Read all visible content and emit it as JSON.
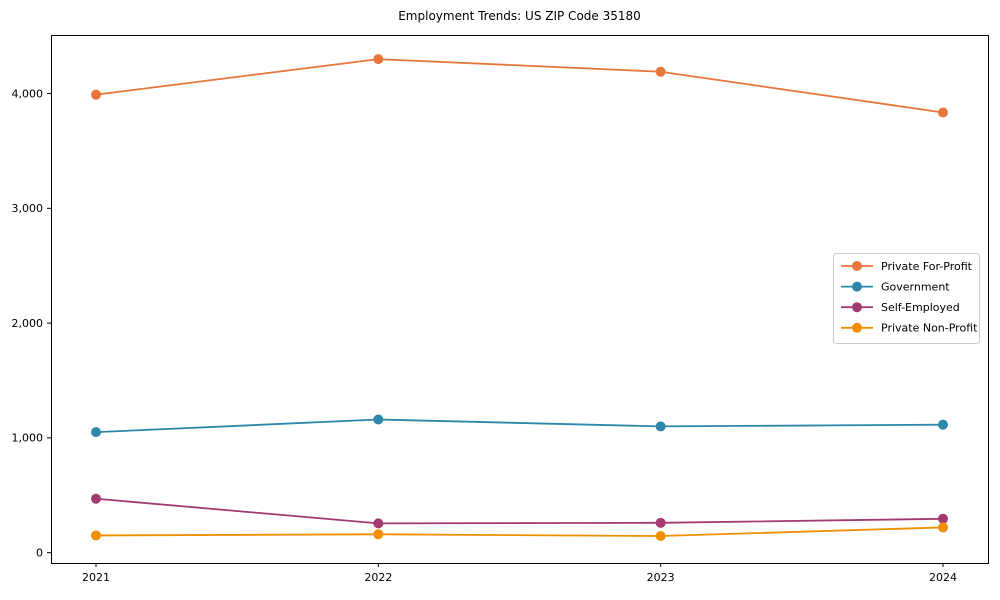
{
  "chart_data": {
    "type": "line",
    "title": "Employment Trends: US ZIP Code 35180",
    "xlabel": "",
    "ylabel": "",
    "x": [
      2021,
      2022,
      2023,
      2024
    ],
    "x_tick_labels": [
      "2021",
      "2022",
      "2023",
      "2024"
    ],
    "y_ticks": [
      0,
      1000,
      2000,
      3000,
      4000
    ],
    "y_tick_labels": [
      "0",
      "1,000",
      "2,000",
      "3,000",
      "4,000"
    ],
    "ylim": [
      -90,
      4510
    ],
    "grid": false,
    "legend_position": "center-right",
    "legend_border_color": "#cccccc",
    "axis_color": "#000000",
    "series": [
      {
        "name": "Private For-Profit",
        "color": "#E8763B",
        "values": [
          3990,
          4300,
          4190,
          3835
        ]
      },
      {
        "name": "Government",
        "color": "#2E86AB",
        "values": [
          1050,
          1160,
          1100,
          1115
        ]
      },
      {
        "name": "Self-Employed",
        "color": "#A23B72",
        "values": [
          470,
          255,
          260,
          295
        ]
      },
      {
        "name": "Private Non-Profit",
        "color": "#F18F01",
        "values": [
          150,
          160,
          145,
          220
        ]
      }
    ]
  }
}
